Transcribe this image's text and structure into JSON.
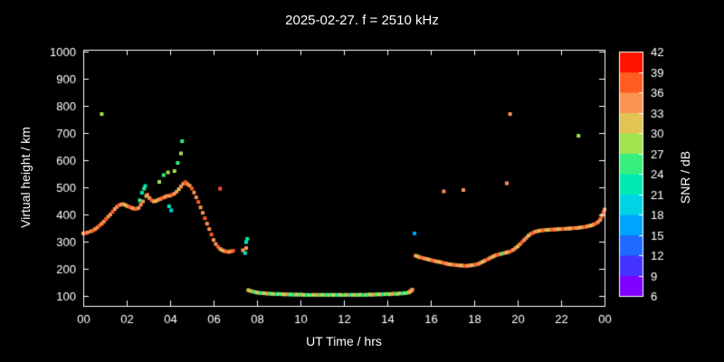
{
  "title": "2025-02-27. f = 2510 kHz",
  "chart_data": {
    "type": "scatter",
    "title": "2025-02-27. f = 2510 kHz",
    "xlabel": "UT Time / hrs",
    "ylabel": "Virtual height / km",
    "xlim": [
      0,
      24
    ],
    "ylim": [
      63,
      1007
    ],
    "x_tick_labels": [
      "00",
      "02",
      "04",
      "06",
      "08",
      "10",
      "12",
      "14",
      "16",
      "18",
      "20",
      "22",
      "00"
    ],
    "x_tick_values": [
      0,
      2,
      4,
      6,
      8,
      10,
      12,
      14,
      16,
      18,
      20,
      22,
      24
    ],
    "y_tick_values": [
      1000,
      900,
      800,
      700,
      600,
      500,
      400,
      300,
      200,
      100
    ],
    "background": "#000000",
    "axis_color": "#ffffff",
    "text_color": "#ffffff",
    "grid": false,
    "legend": "colorbar-right",
    "colorbar": {
      "label": "SNR / dB",
      "min": 6,
      "max": 42,
      "tick_labels": [
        42,
        39,
        36,
        33,
        30,
        27,
        24,
        21,
        18,
        15,
        12,
        9,
        6
      ],
      "colors_low_to_high": [
        "#7f00ff",
        "#4433ff",
        "#1f6bff",
        "#00a4ff",
        "#00d4e4",
        "#00eab2",
        "#36ef7e",
        "#9fe44f",
        "#e2c455",
        "#fc9354",
        "#ff5c22",
        "#ff1200"
      ]
    },
    "point_format": [
      "ut_hour",
      "virtual_height_km",
      "snr_db"
    ],
    "points": [
      [
        0.0,
        330,
        33
      ],
      [
        0.1,
        331,
        36
      ],
      [
        0.2,
        334,
        33
      ],
      [
        0.35,
        338,
        33
      ],
      [
        0.45,
        341,
        36
      ],
      [
        0.55,
        346,
        33
      ],
      [
        0.65,
        352,
        33
      ],
      [
        0.75,
        359,
        36
      ],
      [
        0.85,
        366,
        33
      ],
      [
        0.85,
        770,
        27
      ],
      [
        0.95,
        374,
        33
      ],
      [
        1.05,
        383,
        36
      ],
      [
        1.15,
        392,
        33
      ],
      [
        1.25,
        400,
        33
      ],
      [
        1.35,
        410,
        36
      ],
      [
        1.45,
        420,
        33
      ],
      [
        1.55,
        428,
        33
      ],
      [
        1.65,
        434,
        36
      ],
      [
        1.75,
        437,
        33
      ],
      [
        1.85,
        438,
        33
      ],
      [
        1.95,
        434,
        30
      ],
      [
        2.05,
        430,
        33
      ],
      [
        2.15,
        427,
        36
      ],
      [
        2.25,
        424,
        33
      ],
      [
        2.35,
        421,
        33
      ],
      [
        2.45,
        421,
        36
      ],
      [
        2.55,
        424,
        33
      ],
      [
        2.6,
        452,
        24
      ],
      [
        2.65,
        436,
        33
      ],
      [
        2.7,
        480,
        21
      ],
      [
        2.75,
        448,
        33
      ],
      [
        2.8,
        495,
        24
      ],
      [
        2.85,
        505,
        21
      ],
      [
        2.9,
        468,
        30
      ],
      [
        2.95,
        472,
        33
      ],
      [
        3.05,
        460,
        33
      ],
      [
        3.15,
        452,
        36
      ],
      [
        3.25,
        448,
        33
      ],
      [
        3.35,
        450,
        30
      ],
      [
        3.45,
        454,
        33
      ],
      [
        3.5,
        520,
        27
      ],
      [
        3.55,
        457,
        33
      ],
      [
        3.65,
        461,
        36
      ],
      [
        3.7,
        545,
        24
      ],
      [
        3.75,
        464,
        33
      ],
      [
        3.85,
        468,
        33
      ],
      [
        3.9,
        555,
        27
      ],
      [
        3.95,
        430,
        21
      ],
      [
        4.0,
        469,
        33
      ],
      [
        4.05,
        415,
        18
      ],
      [
        4.1,
        473,
        36
      ],
      [
        4.2,
        560,
        27
      ],
      [
        4.2,
        477,
        33
      ],
      [
        4.3,
        484,
        33
      ],
      [
        4.35,
        590,
        24
      ],
      [
        4.4,
        493,
        30
      ],
      [
        4.5,
        625,
        27
      ],
      [
        4.5,
        503,
        33
      ],
      [
        4.55,
        670,
        24
      ],
      [
        4.6,
        513,
        33
      ],
      [
        4.7,
        519,
        36
      ],
      [
        4.8,
        512,
        33
      ],
      [
        4.9,
        506,
        33
      ],
      [
        5.0,
        496,
        36
      ],
      [
        5.1,
        481,
        33
      ],
      [
        5.2,
        463,
        33
      ],
      [
        5.3,
        446,
        36
      ],
      [
        5.4,
        426,
        33
      ],
      [
        5.5,
        406,
        33
      ],
      [
        5.6,
        386,
        36
      ],
      [
        5.7,
        366,
        33
      ],
      [
        5.8,
        346,
        33
      ],
      [
        5.9,
        326,
        36
      ],
      [
        6.0,
        306,
        33
      ],
      [
        6.1,
        291,
        33
      ],
      [
        6.2,
        281,
        36
      ],
      [
        6.3,
        495,
        36
      ],
      [
        6.3,
        273,
        33
      ],
      [
        6.4,
        268,
        30
      ],
      [
        6.5,
        265,
        33
      ],
      [
        6.6,
        263,
        36
      ],
      [
        6.7,
        262,
        33
      ],
      [
        6.8,
        264,
        33
      ],
      [
        6.9,
        266,
        36
      ],
      [
        7.35,
        268,
        33
      ],
      [
        7.45,
        258,
        21
      ],
      [
        7.5,
        276,
        33
      ],
      [
        7.5,
        298,
        21
      ],
      [
        7.55,
        310,
        22
      ],
      [
        7.6,
        121,
        30
      ],
      [
        7.7,
        118,
        27
      ],
      [
        7.8,
        116,
        33
      ],
      [
        7.9,
        114,
        24
      ],
      [
        8.0,
        112,
        30
      ],
      [
        8.1,
        111,
        27
      ],
      [
        8.2,
        110,
        21
      ],
      [
        8.3,
        110,
        30
      ],
      [
        8.4,
        109,
        27
      ],
      [
        8.5,
        108,
        33
      ],
      [
        8.6,
        108,
        24
      ],
      [
        8.7,
        107,
        27
      ],
      [
        8.8,
        107,
        30
      ],
      [
        8.9,
        106,
        21
      ],
      [
        9.0,
        107,
        27
      ],
      [
        9.1,
        106,
        24
      ],
      [
        9.2,
        106,
        30
      ],
      [
        9.3,
        105,
        27
      ],
      [
        9.4,
        106,
        33
      ],
      [
        9.5,
        105,
        24
      ],
      [
        9.6,
        105,
        27
      ],
      [
        9.7,
        104,
        21
      ],
      [
        9.8,
        105,
        30
      ],
      [
        9.9,
        104,
        27
      ],
      [
        10.0,
        105,
        24
      ],
      [
        10.1,
        104,
        30
      ],
      [
        10.2,
        103,
        27
      ],
      [
        10.3,
        104,
        21
      ],
      [
        10.4,
        103,
        27
      ],
      [
        10.5,
        103,
        24
      ],
      [
        10.6,
        104,
        30
      ],
      [
        10.7,
        103,
        27
      ],
      [
        10.8,
        104,
        33
      ],
      [
        10.9,
        103,
        24
      ],
      [
        11.0,
        104,
        27
      ],
      [
        11.1,
        103,
        30
      ],
      [
        11.2,
        104,
        21
      ],
      [
        11.3,
        103,
        27
      ],
      [
        11.4,
        104,
        24
      ],
      [
        11.5,
        103,
        30
      ],
      [
        11.6,
        104,
        27
      ],
      [
        11.7,
        103,
        21
      ],
      [
        11.8,
        104,
        27
      ],
      [
        11.9,
        103,
        30
      ],
      [
        12.0,
        103,
        24
      ],
      [
        12.1,
        104,
        27
      ],
      [
        12.2,
        103,
        33
      ],
      [
        12.3,
        104,
        21
      ],
      [
        12.4,
        103,
        27
      ],
      [
        12.5,
        104,
        30
      ],
      [
        12.6,
        103,
        24
      ],
      [
        12.7,
        104,
        27
      ],
      [
        12.8,
        104,
        30
      ],
      [
        12.9,
        103,
        21
      ],
      [
        13.0,
        104,
        27
      ],
      [
        13.1,
        104,
        24
      ],
      [
        13.2,
        105,
        30
      ],
      [
        13.3,
        104,
        27
      ],
      [
        13.4,
        105,
        33
      ],
      [
        13.5,
        105,
        24
      ],
      [
        13.6,
        106,
        27
      ],
      [
        13.7,
        105,
        30
      ],
      [
        13.8,
        106,
        21
      ],
      [
        13.9,
        106,
        27
      ],
      [
        14.0,
        107,
        24
      ],
      [
        14.1,
        106,
        30
      ],
      [
        14.2,
        107,
        27
      ],
      [
        14.3,
        108,
        33
      ],
      [
        14.4,
        107,
        24
      ],
      [
        14.5,
        108,
        27
      ],
      [
        14.6,
        109,
        30
      ],
      [
        14.7,
        109,
        21
      ],
      [
        14.8,
        110,
        27
      ],
      [
        14.9,
        111,
        24
      ],
      [
        15.0,
        113,
        30
      ],
      [
        15.05,
        116,
        33
      ],
      [
        15.1,
        119,
        30
      ],
      [
        15.15,
        123,
        33
      ],
      [
        15.25,
        330,
        15
      ],
      [
        15.3,
        248,
        33
      ],
      [
        15.4,
        245,
        30
      ],
      [
        15.5,
        242,
        33
      ],
      [
        15.6,
        240,
        36
      ],
      [
        15.7,
        238,
        33
      ],
      [
        15.8,
        236,
        33
      ],
      [
        15.9,
        234,
        30
      ],
      [
        16.0,
        232,
        33
      ],
      [
        16.1,
        230,
        36
      ],
      [
        16.2,
        228,
        33
      ],
      [
        16.3,
        226,
        33
      ],
      [
        16.4,
        225,
        30
      ],
      [
        16.5,
        223,
        33
      ],
      [
        16.6,
        485,
        33
      ],
      [
        16.6,
        221,
        36
      ],
      [
        16.7,
        219,
        33
      ],
      [
        16.8,
        217,
        33
      ],
      [
        16.9,
        216,
        30
      ],
      [
        17.0,
        215,
        33
      ],
      [
        17.1,
        214,
        36
      ],
      [
        17.2,
        213,
        33
      ],
      [
        17.3,
        212,
        33
      ],
      [
        17.4,
        212,
        30
      ],
      [
        17.5,
        490,
        33
      ],
      [
        17.5,
        211,
        33
      ],
      [
        17.6,
        210,
        36
      ],
      [
        17.7,
        211,
        33
      ],
      [
        17.8,
        212,
        33
      ],
      [
        17.9,
        213,
        30
      ],
      [
        18.0,
        214,
        33
      ],
      [
        18.1,
        216,
        36
      ],
      [
        18.2,
        218,
        33
      ],
      [
        18.3,
        222,
        33
      ],
      [
        18.4,
        226,
        30
      ],
      [
        18.5,
        230,
        33
      ],
      [
        18.6,
        234,
        36
      ],
      [
        18.7,
        238,
        33
      ],
      [
        18.8,
        242,
        33
      ],
      [
        18.9,
        246,
        30
      ],
      [
        19.0,
        250,
        33
      ],
      [
        19.1,
        252,
        36
      ],
      [
        19.2,
        254,
        33
      ],
      [
        19.3,
        256,
        24
      ],
      [
        19.4,
        258,
        33
      ],
      [
        19.5,
        515,
        33
      ],
      [
        19.5,
        260,
        30
      ],
      [
        19.6,
        262,
        33
      ],
      [
        19.65,
        770,
        33
      ],
      [
        19.7,
        265,
        36
      ],
      [
        19.8,
        270,
        33
      ],
      [
        19.9,
        276,
        33
      ],
      [
        20.0,
        282,
        30
      ],
      [
        20.1,
        290,
        33
      ],
      [
        20.2,
        298,
        36
      ],
      [
        20.3,
        306,
        33
      ],
      [
        20.4,
        314,
        33
      ],
      [
        20.5,
        322,
        30
      ],
      [
        20.6,
        328,
        33
      ],
      [
        20.7,
        332,
        36
      ],
      [
        20.8,
        336,
        33
      ],
      [
        20.9,
        338,
        33
      ],
      [
        21.0,
        340,
        30
      ],
      [
        21.1,
        341,
        33
      ],
      [
        21.2,
        342,
        36
      ],
      [
        21.3,
        343,
        33
      ],
      [
        21.4,
        343,
        27
      ],
      [
        21.5,
        344,
        33
      ],
      [
        21.6,
        344,
        36
      ],
      [
        21.7,
        345,
        33
      ],
      [
        21.8,
        345,
        33
      ],
      [
        21.9,
        346,
        30
      ],
      [
        22.0,
        346,
        33
      ],
      [
        22.1,
        347,
        36
      ],
      [
        22.2,
        347,
        33
      ],
      [
        22.3,
        348,
        33
      ],
      [
        22.4,
        348,
        30
      ],
      [
        22.5,
        349,
        33
      ],
      [
        22.6,
        350,
        36
      ],
      [
        22.7,
        350,
        33
      ],
      [
        22.8,
        690,
        27
      ],
      [
        22.8,
        351,
        33
      ],
      [
        22.9,
        352,
        30
      ],
      [
        23.0,
        353,
        33
      ],
      [
        23.1,
        354,
        36
      ],
      [
        23.2,
        356,
        33
      ],
      [
        23.3,
        358,
        33
      ],
      [
        23.4,
        360,
        30
      ],
      [
        23.5,
        363,
        33
      ],
      [
        23.6,
        367,
        36
      ],
      [
        23.7,
        372,
        33
      ],
      [
        23.8,
        380,
        33
      ],
      [
        23.85,
        390,
        36
      ],
      [
        23.9,
        398,
        33
      ],
      [
        23.95,
        408,
        36
      ],
      [
        24.0,
        418,
        33
      ]
    ]
  }
}
